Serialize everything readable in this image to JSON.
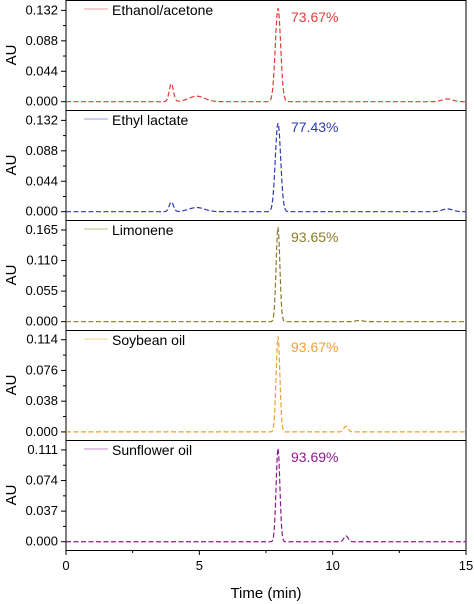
{
  "chart_data": {
    "type": "line",
    "xlabel": "Time (min)",
    "ylabel": "AU",
    "xlim": [
      0,
      15
    ],
    "x_ticks": [
      "0",
      "5",
      "10",
      "15"
    ],
    "panels": [
      {
        "name": "Ethanol/acetone",
        "purity_label": "73.67%",
        "color": "#e03c3c",
        "ylim": [
          -0.012,
          0.147
        ],
        "y_ticks": [
          0.0,
          0.044,
          0.088,
          0.132
        ],
        "y_tick_labels": [
          "0.000",
          "0.044",
          "0.088",
          "0.132"
        ],
        "peaks": [
          {
            "t": 3.95,
            "h": 0.026,
            "w": 0.08
          },
          {
            "t": 4.9,
            "h": 0.008,
            "w": 0.3
          },
          {
            "t": 7.95,
            "h": 0.135,
            "w": 0.1
          },
          {
            "t": 14.3,
            "h": 0.004,
            "w": 0.2
          }
        ]
      },
      {
        "name": "Ethyl lactate",
        "purity_label": "77.43%",
        "color": "#2c3ab8",
        "ylim": [
          -0.012,
          0.147
        ],
        "y_ticks": [
          0.0,
          0.044,
          0.088,
          0.132
        ],
        "y_tick_labels": [
          "0.000",
          "0.044",
          "0.088",
          "0.132"
        ],
        "peaks": [
          {
            "t": 3.95,
            "h": 0.014,
            "w": 0.08
          },
          {
            "t": 4.9,
            "h": 0.006,
            "w": 0.3
          },
          {
            "t": 7.95,
            "h": 0.128,
            "w": 0.1
          },
          {
            "t": 14.3,
            "h": 0.004,
            "w": 0.2
          }
        ]
      },
      {
        "name": "Limonene",
        "purity_label": "93.65%",
        "color": "#8c7a2a",
        "ylim": [
          -0.015,
          0.183
        ],
        "y_ticks": [
          0.0,
          0.055,
          0.11,
          0.165
        ],
        "y_tick_labels": [
          "0.000",
          "0.055",
          "0.110",
          "0.165"
        ],
        "peaks": [
          {
            "t": 7.95,
            "h": 0.17,
            "w": 0.07
          },
          {
            "t": 11.0,
            "h": 0.002,
            "w": 0.15
          }
        ]
      },
      {
        "name": "Soybean oil",
        "purity_label": "93.67%",
        "color": "#f0a030",
        "ylim": [
          -0.01,
          0.126
        ],
        "y_ticks": [
          0.0,
          0.038,
          0.076,
          0.114
        ],
        "y_tick_labels": [
          "0.000",
          "0.038",
          "0.076",
          "0.114"
        ],
        "peaks": [
          {
            "t": 7.95,
            "h": 0.118,
            "w": 0.07
          },
          {
            "t": 10.5,
            "h": 0.007,
            "w": 0.08
          }
        ]
      },
      {
        "name": "Sunflower oil",
        "purity_label": "93.69%",
        "color": "#8e1a8e",
        "ylim": [
          -0.01,
          0.123
        ],
        "y_ticks": [
          0.0,
          0.037,
          0.074,
          0.111
        ],
        "y_tick_labels": [
          "0.000",
          "0.037",
          "0.074",
          "0.111"
        ],
        "peaks": [
          {
            "t": 7.95,
            "h": 0.113,
            "w": 0.07
          },
          {
            "t": 10.5,
            "h": 0.007,
            "w": 0.08
          }
        ]
      }
    ]
  }
}
